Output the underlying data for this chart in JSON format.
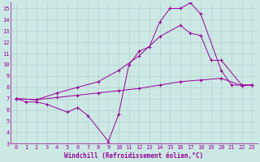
{
  "xlabel": "Windchill (Refroidissement éolien,°C)",
  "background_color": "#cce8e4",
  "grid_color": "#aacccc",
  "line_color": "#990099",
  "xlim": [
    -0.5,
    23.5
  ],
  "ylim": [
    3,
    15.5
  ],
  "xticks": [
    0,
    1,
    2,
    3,
    4,
    5,
    6,
    7,
    8,
    9,
    10,
    11,
    12,
    13,
    14,
    15,
    16,
    17,
    18,
    19,
    20,
    21,
    22,
    23
  ],
  "yticks": [
    3,
    4,
    5,
    6,
    7,
    8,
    9,
    10,
    11,
    12,
    13,
    14,
    15
  ],
  "line1_x": [
    0,
    1,
    2,
    3,
    5,
    6,
    7,
    9,
    10,
    11,
    12,
    13,
    14,
    15,
    16,
    17,
    18,
    20,
    21,
    22,
    23
  ],
  "line1_y": [
    7.0,
    6.7,
    6.7,
    6.5,
    5.8,
    6.2,
    5.5,
    3.2,
    5.6,
    10.0,
    11.2,
    11.6,
    13.8,
    15.0,
    15.0,
    15.5,
    14.5,
    9.5,
    8.2,
    8.2,
    8.2
  ],
  "line2_x": [
    0,
    2,
    4,
    6,
    8,
    10,
    12,
    14,
    16,
    18,
    20,
    22,
    23
  ],
  "line2_y": [
    7.0,
    6.9,
    7.1,
    7.3,
    7.5,
    7.7,
    7.9,
    8.2,
    8.5,
    8.65,
    8.8,
    8.15,
    8.2
  ],
  "line3_x": [
    0,
    2,
    4,
    6,
    8,
    10,
    12,
    14,
    16,
    17,
    18,
    19,
    20,
    22,
    23
  ],
  "line3_y": [
    7.0,
    6.9,
    7.5,
    8.0,
    8.5,
    9.5,
    10.8,
    12.5,
    13.5,
    12.8,
    12.6,
    10.4,
    10.4,
    8.2,
    8.2
  ]
}
